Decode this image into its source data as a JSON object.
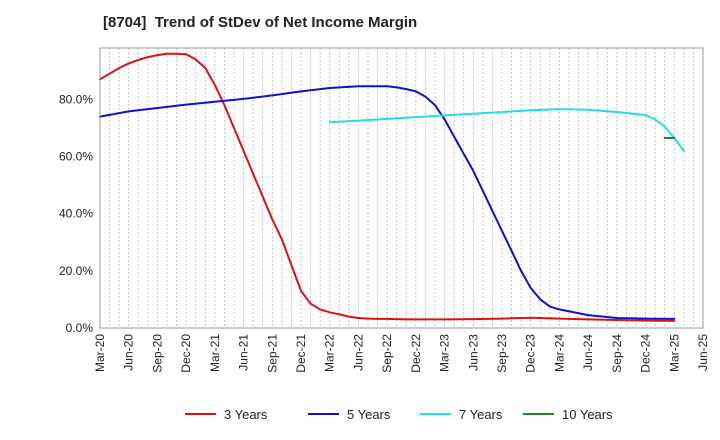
{
  "chart_data": {
    "type": "line",
    "title": "[8704]  Trend of StDev of Net Income Margin",
    "xlabel": "",
    "ylabel": "",
    "x_ticks": [
      "Mar-20",
      "Jun-20",
      "Sep-20",
      "Dec-20",
      "Mar-21",
      "Jun-21",
      "Sep-21",
      "Dec-21",
      "Mar-22",
      "Jun-22",
      "Sep-22",
      "Dec-22",
      "Mar-23",
      "Jun-23",
      "Sep-23",
      "Dec-23",
      "Mar-24",
      "Jun-24",
      "Sep-24",
      "Dec-24",
      "Mar-25",
      "Jun-25"
    ],
    "y_ticks": [
      "0.0%",
      "20.0%",
      "40.0%",
      "60.0%",
      "80.0%"
    ],
    "ylim": [
      0,
      98
    ],
    "grid": "vertical dashed",
    "legend_position": "bottom",
    "series": [
      {
        "name": "3 Years",
        "color": "#dd1111",
        "points": [
          [
            "Mar-20",
            87.0
          ],
          [
            "Apr-20",
            89.0
          ],
          [
            "May-20",
            91.0
          ],
          [
            "Jun-20",
            92.6
          ],
          [
            "Jul-20",
            93.8
          ],
          [
            "Aug-20",
            94.8
          ],
          [
            "Sep-20",
            95.5
          ],
          [
            "Oct-20",
            96.0
          ],
          [
            "Nov-20",
            96.0
          ],
          [
            "Dec-20",
            95.8
          ],
          [
            "Jan-21",
            94.0
          ],
          [
            "Feb-21",
            91.0
          ],
          [
            "Mar-21",
            85.0
          ],
          [
            "Apr-21",
            78.0
          ],
          [
            "May-21",
            70.0
          ],
          [
            "Jun-21",
            62.0
          ],
          [
            "Jul-21",
            54.0
          ],
          [
            "Aug-21",
            46.0
          ],
          [
            "Sep-21",
            38.0
          ],
          [
            "Oct-21",
            31.0
          ],
          [
            "Nov-21",
            22.0
          ],
          [
            "Dec-21",
            13.0
          ],
          [
            "Jan-22",
            8.5
          ],
          [
            "Feb-22",
            6.5
          ],
          [
            "Mar-22",
            5.5
          ],
          [
            "Apr-22",
            4.8
          ],
          [
            "May-22",
            4.0
          ],
          [
            "Jun-22",
            3.5
          ],
          [
            "Jul-22",
            3.3
          ],
          [
            "Aug-22",
            3.2
          ],
          [
            "Sep-22",
            3.2
          ],
          [
            "Oct-22",
            3.1
          ],
          [
            "Nov-22",
            3.0
          ],
          [
            "Dec-22",
            3.0
          ],
          [
            "Mar-23",
            3.0
          ],
          [
            "Jun-23",
            3.1
          ],
          [
            "Sep-23",
            3.3
          ],
          [
            "Dec-23",
            3.6
          ],
          [
            "Mar-24",
            3.3
          ],
          [
            "Jun-24",
            3.0
          ],
          [
            "Sep-24",
            2.8
          ],
          [
            "Dec-24",
            2.6
          ],
          [
            "Mar-25",
            2.5
          ]
        ]
      },
      {
        "name": "5 Years",
        "color": "#1111cc",
        "points": [
          [
            "Mar-20",
            74.0
          ],
          [
            "Jun-20",
            75.8
          ],
          [
            "Sep-20",
            77.0
          ],
          [
            "Dec-20",
            78.2
          ],
          [
            "Mar-21",
            79.2
          ],
          [
            "Jun-21",
            80.2
          ],
          [
            "Sep-21",
            81.4
          ],
          [
            "Dec-21",
            82.8
          ],
          [
            "Mar-22",
            84.0
          ],
          [
            "Jun-22",
            84.6
          ],
          [
            "Sep-22",
            84.6
          ],
          [
            "Oct-22",
            84.2
          ],
          [
            "Nov-22",
            83.6
          ],
          [
            "Dec-22",
            82.8
          ],
          [
            "Jan-23",
            81.0
          ],
          [
            "Feb-23",
            78.0
          ],
          [
            "Mar-23",
            73.0
          ],
          [
            "Apr-23",
            67.0
          ],
          [
            "May-23",
            61.0
          ],
          [
            "Jun-23",
            55.0
          ],
          [
            "Jul-23",
            48.0
          ],
          [
            "Aug-23",
            41.0
          ],
          [
            "Sep-23",
            34.0
          ],
          [
            "Oct-23",
            27.0
          ],
          [
            "Nov-23",
            20.0
          ],
          [
            "Dec-23",
            14.0
          ],
          [
            "Jan-24",
            10.0
          ],
          [
            "Feb-24",
            7.5
          ],
          [
            "Mar-24",
            6.5
          ],
          [
            "Jun-24",
            4.5
          ],
          [
            "Sep-24",
            3.5
          ],
          [
            "Dec-24",
            3.3
          ],
          [
            "Mar-25",
            3.2
          ]
        ]
      },
      {
        "name": "7 Years",
        "color": "#22ddee",
        "points": [
          [
            "Mar-22",
            72.0
          ],
          [
            "Jun-22",
            72.6
          ],
          [
            "Sep-22",
            73.2
          ],
          [
            "Dec-22",
            73.8
          ],
          [
            "Mar-23",
            74.4
          ],
          [
            "Jun-23",
            75.0
          ],
          [
            "Sep-23",
            75.6
          ],
          [
            "Dec-23",
            76.2
          ],
          [
            "Mar-24",
            76.6
          ],
          [
            "Jun-24",
            76.4
          ],
          [
            "Sep-24",
            75.6
          ],
          [
            "Dec-24",
            74.5
          ],
          [
            "Jan-25",
            73.0
          ],
          [
            "Feb-25",
            70.5
          ],
          [
            "Mar-25",
            66.5
          ],
          [
            "Apr-25",
            62.0
          ]
        ]
      },
      {
        "name": "10 Years",
        "color": "#228822",
        "points": [
          [
            "Feb-25",
            66.5
          ],
          [
            "Mar-25",
            66.5
          ]
        ]
      }
    ]
  }
}
